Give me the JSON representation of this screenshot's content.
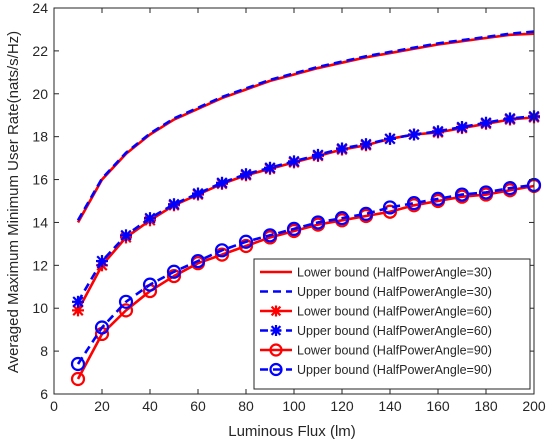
{
  "chart_data": {
    "type": "line",
    "title": "",
    "xlabel": "Luminous Flux (lm)",
    "ylabel": "Averaged Maximum Minimum User Rate(nats/s/Hz)",
    "xlim": [
      0,
      200
    ],
    "ylim": [
      6,
      24
    ],
    "x_ticks": [
      "0",
      "20",
      "40",
      "60",
      "80",
      "100",
      "120",
      "140",
      "160",
      "180",
      "200"
    ],
    "y_ticks": [
      "6",
      "8",
      "10",
      "12",
      "14",
      "16",
      "18",
      "20",
      "22",
      "24"
    ],
    "grid": false,
    "legend_position": "bottom-right",
    "x": [
      10,
      20,
      30,
      40,
      50,
      60,
      70,
      80,
      90,
      100,
      110,
      120,
      130,
      140,
      150,
      160,
      170,
      180,
      190,
      200
    ],
    "series": [
      {
        "name": "Lower bound (HalfPowerAngle=30)",
        "color": "#ff0000",
        "dash": "solid",
        "marker": "none",
        "values": [
          14.0,
          16.0,
          17.2,
          18.1,
          18.8,
          19.3,
          19.8,
          20.2,
          20.6,
          20.9,
          21.2,
          21.45,
          21.7,
          21.9,
          22.1,
          22.3,
          22.45,
          22.6,
          22.75,
          22.8
        ]
      },
      {
        "name": "Upper bound (HalfPowerAngle=30)",
        "color": "#0000ff",
        "dash": "dashed",
        "marker": "none",
        "values": [
          14.1,
          16.05,
          17.25,
          18.15,
          18.85,
          19.35,
          19.85,
          20.25,
          20.65,
          20.95,
          21.25,
          21.5,
          21.75,
          21.95,
          22.15,
          22.35,
          22.5,
          22.65,
          22.8,
          22.9
        ]
      },
      {
        "name": "Lower bound (HalfPowerAngle=60)",
        "color": "#ff0000",
        "dash": "solid",
        "marker": "asterisk",
        "values": [
          9.9,
          12.0,
          13.3,
          14.1,
          14.8,
          15.3,
          15.8,
          16.2,
          16.5,
          16.8,
          17.1,
          17.4,
          17.6,
          17.9,
          18.1,
          18.2,
          18.4,
          18.6,
          18.8,
          18.9
        ]
      },
      {
        "name": "Upper bound (HalfPowerAngle=60)",
        "color": "#0000ff",
        "dash": "dashed",
        "marker": "asterisk",
        "values": [
          10.3,
          12.2,
          13.4,
          14.2,
          14.85,
          15.35,
          15.85,
          16.25,
          16.55,
          16.85,
          17.15,
          17.45,
          17.65,
          17.9,
          18.1,
          18.25,
          18.45,
          18.65,
          18.85,
          18.95
        ]
      },
      {
        "name": "Lower bound (HalfPowerAngle=90)",
        "color": "#ff0000",
        "dash": "solid",
        "marker": "circle",
        "values": [
          6.7,
          8.8,
          9.9,
          10.8,
          11.5,
          12.1,
          12.5,
          12.9,
          13.3,
          13.6,
          13.9,
          14.1,
          14.3,
          14.5,
          14.8,
          15.0,
          15.2,
          15.3,
          15.5,
          15.7
        ]
      },
      {
        "name": "Upper bound (HalfPowerAngle=90)",
        "color": "#0000ff",
        "dash": "dashed",
        "marker": "circle",
        "values": [
          7.4,
          9.1,
          10.3,
          11.1,
          11.7,
          12.2,
          12.7,
          13.1,
          13.4,
          13.7,
          14.0,
          14.2,
          14.4,
          14.7,
          14.9,
          15.1,
          15.3,
          15.4,
          15.6,
          15.75
        ]
      }
    ]
  }
}
